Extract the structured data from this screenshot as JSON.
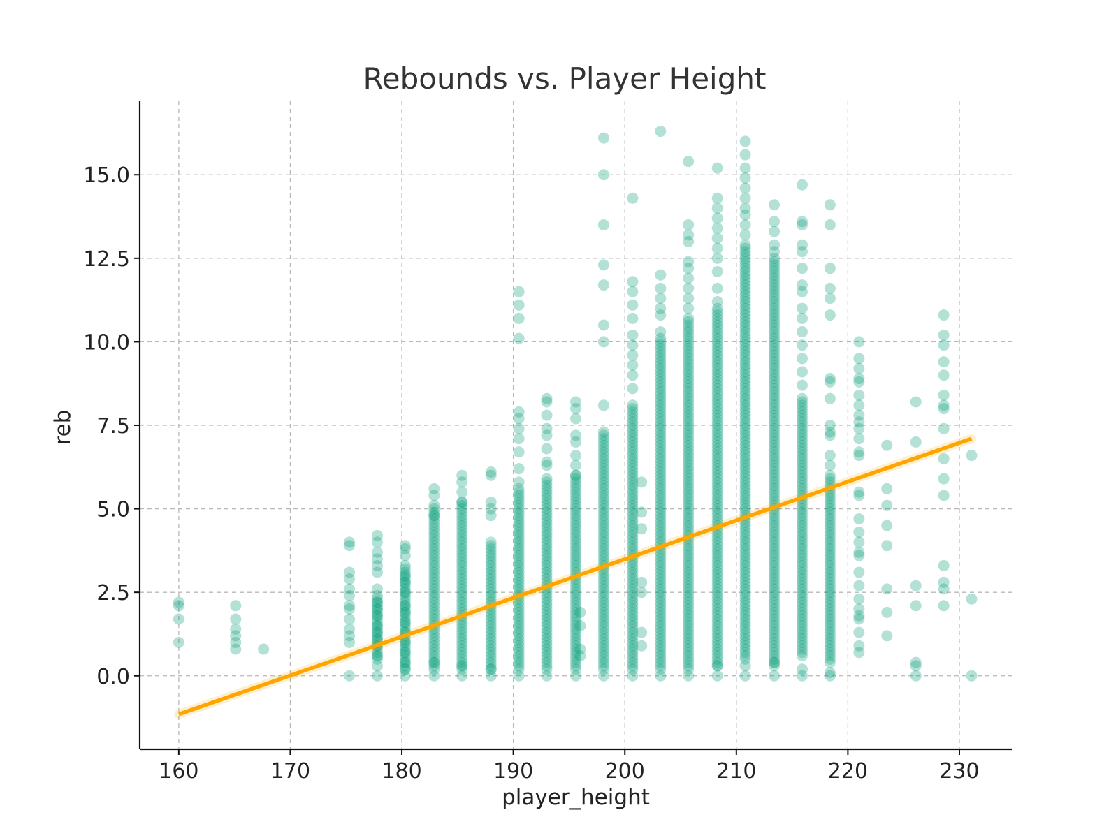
{
  "chart_data": {
    "type": "scatter",
    "title": "Rebounds vs. Player Height",
    "xlabel": "player_height",
    "ylabel": "reb",
    "xlim": [
      156.5,
      234.7
    ],
    "ylim": [
      -2.2,
      17.2
    ],
    "xticks": [
      160,
      170,
      180,
      190,
      200,
      210,
      220,
      230
    ],
    "xtick_labels": [
      "160",
      "170",
      "180",
      "190",
      "200",
      "210",
      "220",
      "230"
    ],
    "yticks": [
      0.0,
      2.5,
      5.0,
      7.5,
      10.0,
      12.5,
      15.0
    ],
    "ytick_labels": [
      "0.0",
      "2.5",
      "5.0",
      "7.5",
      "10.0",
      "12.5",
      "15.0"
    ],
    "grid": true,
    "legend": "none",
    "colors": {
      "points": "#12a37f",
      "trend": "#ffa500"
    },
    "trend_line": {
      "x": [
        160.0,
        231.1
      ],
      "y": [
        -1.15,
        7.1
      ]
    },
    "columns": [
      {
        "x": 160.0,
        "values": [
          2.2,
          2.1,
          1.7,
          1.0
        ]
      },
      {
        "x": 165.1,
        "values": [
          2.1,
          1.7,
          1.4,
          1.2,
          1.0,
          0.8
        ]
      },
      {
        "x": 167.6,
        "values": [
          0.8
        ]
      },
      {
        "x": 175.3,
        "values": [
          4.0,
          3.9,
          3.1,
          2.9,
          2.6,
          2.4,
          2.1,
          2.0,
          1.7,
          1.4,
          1.2,
          1.0,
          0.0
        ]
      },
      {
        "x": 177.8,
        "values": [
          4.2,
          4.0,
          3.7,
          3.5,
          3.3,
          3.1,
          2.6,
          2.2,
          2.0,
          1.8,
          1.5,
          1.3,
          1.1,
          0.9,
          0.6,
          0.3,
          0.0
        ],
        "dense": [
          0.5,
          2.4
        ]
      },
      {
        "x": 180.3,
        "values": [
          3.9,
          3.8,
          3.6,
          3.3,
          3.0,
          2.8,
          2.5,
          2.1,
          1.9,
          1.6,
          1.3,
          1.0,
          0.7,
          0.4,
          0.2,
          0.0
        ],
        "dense": [
          0.2,
          3.2
        ]
      },
      {
        "x": 182.9,
        "values": [
          5.6,
          5.4,
          5.1,
          4.8,
          0.4,
          0.2,
          0.0
        ],
        "dense": [
          0.3,
          5.0
        ]
      },
      {
        "x": 185.4,
        "values": [
          6.0,
          5.8,
          5.5,
          5.2,
          0.3,
          0.0
        ],
        "dense": [
          0.2,
          5.2
        ]
      },
      {
        "x": 188.0,
        "values": [
          6.1,
          6.0,
          5.2,
          5.0,
          4.8,
          0.2,
          0.0
        ],
        "dense": [
          0.2,
          4.0
        ]
      },
      {
        "x": 190.5,
        "values": [
          11.5,
          11.1,
          10.7,
          10.1,
          7.9,
          7.7,
          7.4,
          7.1,
          6.7,
          6.2,
          5.8,
          0.0
        ],
        "dense": [
          0.2,
          5.6
        ]
      },
      {
        "x": 193.0,
        "values": [
          8.3,
          8.2,
          7.8,
          7.4,
          7.2,
          6.8,
          6.4,
          6.3,
          5.9,
          0.0
        ],
        "dense": [
          0.2,
          5.8
        ]
      },
      {
        "x": 195.6,
        "values": [
          8.2,
          8.0,
          7.7,
          7.2,
          7.0,
          6.6,
          6.3,
          6.0,
          0.0
        ],
        "dense": [
          0.2,
          6.0
        ]
      },
      {
        "x": 196.0,
        "values": [
          1.9,
          1.5,
          0.8,
          0.6
        ]
      },
      {
        "x": 198.1,
        "values": [
          16.1,
          15.0,
          13.5,
          12.3,
          11.7,
          10.5,
          10.0,
          8.1,
          7.3,
          0.0
        ],
        "dense": [
          0.2,
          7.2
        ]
      },
      {
        "x": 200.7,
        "values": [
          14.3,
          11.8,
          11.5,
          11.1,
          10.7,
          10.2,
          9.9,
          9.6,
          9.3,
          9.0,
          8.6,
          8.1,
          0.2,
          0.0
        ],
        "dense": [
          0.3,
          8.0
        ]
      },
      {
        "x": 201.5,
        "values": [
          5.8,
          4.9,
          4.4,
          2.8,
          2.5,
          1.3,
          0.9
        ]
      },
      {
        "x": 203.2,
        "values": [
          16.3,
          12.0,
          11.6,
          11.3,
          11.0,
          10.8,
          10.3,
          10.1,
          0.0
        ],
        "dense": [
          0.2,
          10.0
        ]
      },
      {
        "x": 205.7,
        "values": [
          15.4,
          13.5,
          13.2,
          13.0,
          12.4,
          12.2,
          11.9,
          11.6,
          11.3,
          11.0,
          10.7,
          0.0
        ],
        "dense": [
          0.2,
          10.6
        ]
      },
      {
        "x": 208.3,
        "values": [
          15.2,
          14.3,
          14.0,
          13.7,
          13.4,
          13.1,
          12.8,
          12.5,
          12.1,
          11.6,
          11.2,
          0.3,
          0.0
        ],
        "dense": [
          0.3,
          11.0
        ]
      },
      {
        "x": 210.8,
        "values": [
          16.0,
          15.6,
          15.2,
          14.9,
          14.6,
          14.3,
          14.0,
          13.8,
          13.5,
          13.2,
          12.9,
          0.3,
          0.0
        ],
        "dense": [
          0.5,
          12.8
        ]
      },
      {
        "x": 213.4,
        "values": [
          14.1,
          13.6,
          13.3,
          12.9,
          12.7,
          12.5,
          0.4,
          0.0
        ],
        "dense": [
          0.3,
          12.4
        ]
      },
      {
        "x": 215.9,
        "values": [
          14.7,
          13.6,
          13.5,
          12.9,
          12.7,
          12.2,
          11.7,
          11.5,
          11.0,
          10.7,
          10.3,
          9.9,
          9.5,
          9.1,
          8.7,
          8.3,
          0.2,
          0.0
        ],
        "dense": [
          0.6,
          8.2
        ]
      },
      {
        "x": 218.4,
        "values": [
          14.1,
          13.5,
          12.2,
          11.6,
          11.3,
          10.8,
          8.9,
          8.8,
          8.3,
          7.5,
          7.3,
          7.2,
          6.6,
          6.3,
          0.1,
          0.0
        ],
        "dense": [
          0.4,
          6.0
        ]
      },
      {
        "x": 221.0,
        "values": [
          10.0,
          9.5,
          9.2,
          8.9,
          8.8,
          8.4,
          8.1,
          7.8,
          7.6,
          7.4,
          7.1,
          6.7,
          6.6,
          5.5,
          5.4,
          4.7,
          4.3,
          4.0,
          3.7,
          3.6,
          3.1,
          2.7,
          2.3,
          2.0,
          1.8,
          1.7,
          1.3,
          0.9,
          0.7
        ]
      },
      {
        "x": 223.5,
        "values": [
          6.9,
          5.6,
          5.1,
          4.5,
          3.9,
          2.6,
          1.9,
          1.2
        ]
      },
      {
        "x": 226.1,
        "values": [
          8.2,
          7.0,
          2.7,
          2.1,
          0.4,
          0.3,
          0.0
        ]
      },
      {
        "x": 228.6,
        "values": [
          10.8,
          10.2,
          9.9,
          9.4,
          9.0,
          8.4,
          8.1,
          8.0,
          7.4,
          6.5,
          5.9,
          5.4,
          3.3,
          2.8,
          2.6,
          2.1
        ]
      },
      {
        "x": 231.1,
        "values": [
          6.6,
          2.3,
          0.0
        ]
      }
    ]
  }
}
